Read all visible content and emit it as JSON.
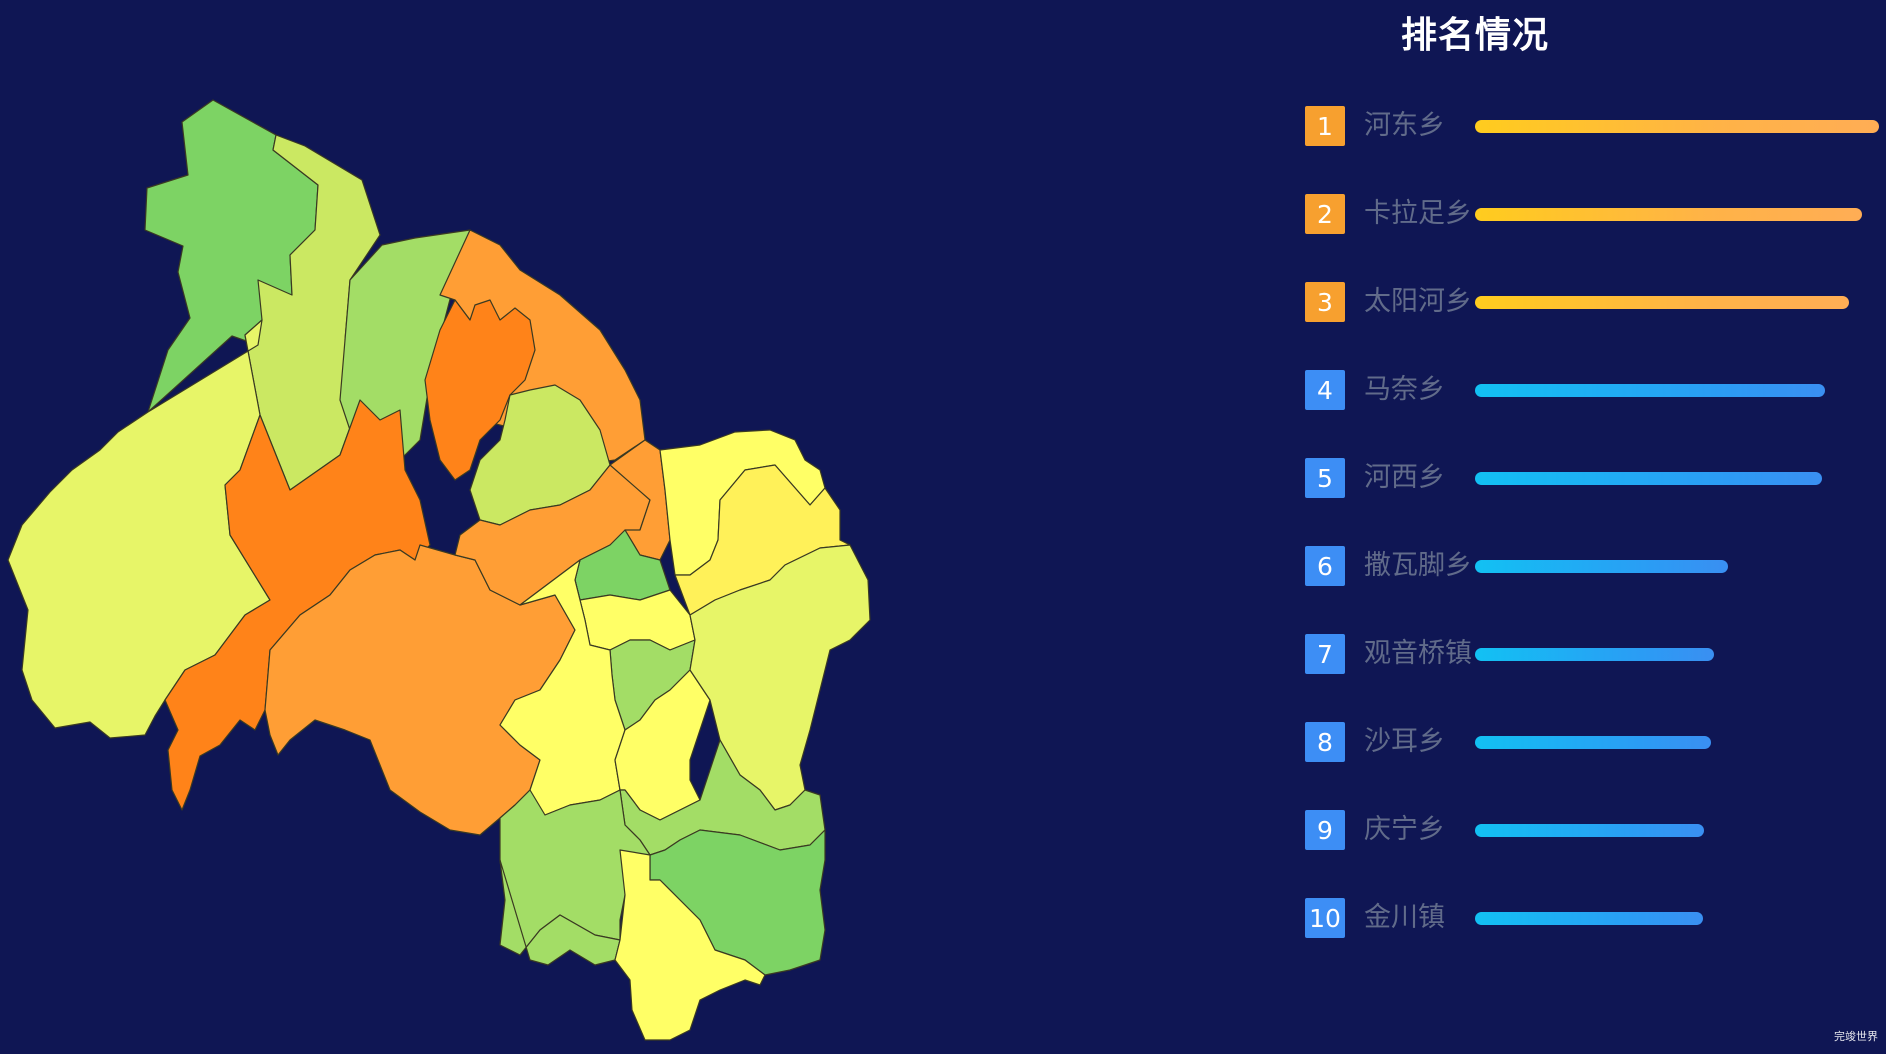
{
  "title": "排名情况",
  "ranking": [
    {
      "rank": "1",
      "name": "河东乡",
      "value": 1.0,
      "tier": "top",
      "color": "#f7a02f"
    },
    {
      "rank": "2",
      "name": "卡拉足乡",
      "value": 0.957,
      "tier": "top",
      "color": "#f7a02f"
    },
    {
      "rank": "3",
      "name": "太阳河乡",
      "value": 0.925,
      "tier": "top",
      "color": "#f7a02f"
    },
    {
      "rank": "4",
      "name": "马奈乡",
      "value": 0.866,
      "tier": "blue",
      "color": "#3d8ef5"
    },
    {
      "rank": "5",
      "name": "河西乡",
      "value": 0.86,
      "tier": "blue",
      "color": "#3d8ef5"
    },
    {
      "rank": "6",
      "name": "撒瓦脚乡",
      "value": 0.627,
      "tier": "blue",
      "color": "#3d8ef5"
    },
    {
      "rank": "7",
      "name": "观音桥镇",
      "value": 0.591,
      "tier": "blue",
      "color": "#3d8ef5"
    },
    {
      "rank": "8",
      "name": "沙耳乡",
      "value": 0.585,
      "tier": "blue",
      "color": "#3d8ef5"
    },
    {
      "rank": "9",
      "name": "庆宁乡",
      "value": 0.567,
      "tier": "blue",
      "color": "#3d8ef5"
    },
    {
      "rank": "10",
      "name": "金川镇",
      "value": 0.564,
      "tier": "blue",
      "color": "#3d8ef5"
    }
  ],
  "map_colors": {
    "orange_deep": "#ff8319",
    "orange": "#ff9e35",
    "yellow": "#ffff66",
    "yellow_green": "#e7f568",
    "light_green": "#cbe862",
    "green": "#a3dd66",
    "deep_green": "#7dd364"
  },
  "watermark": "完竣世界"
}
